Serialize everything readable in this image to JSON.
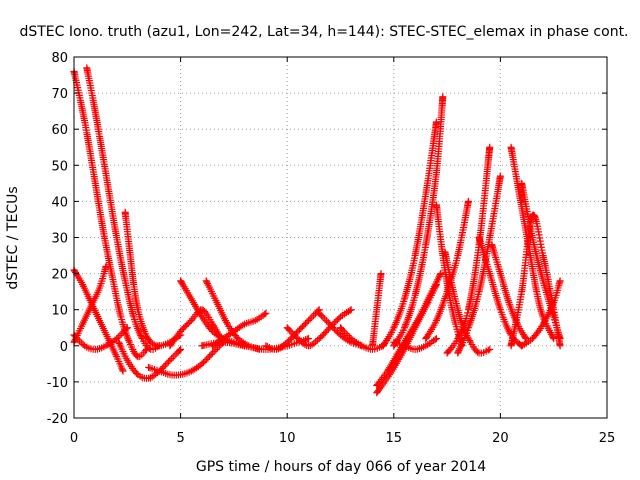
{
  "chart_data": {
    "type": "scatter",
    "title": "dSTEC Iono. truth (azu1, Lon=242, Lat=34, h=144): STEC-STEC_elemax in phase cont.",
    "xlabel": "GPS time / hours of day 066 of year 2014",
    "ylabel": "dSTEC  / TECUs",
    "xlim": [
      0,
      25
    ],
    "ylim": [
      -20,
      80
    ],
    "xticks": [
      "0",
      "5",
      "10",
      "15",
      "20",
      "25"
    ],
    "yticks": [
      "-20",
      "-10",
      "0",
      "10",
      "20",
      "30",
      "40",
      "50",
      "60",
      "70",
      "80"
    ],
    "grid": true,
    "marker": "plus",
    "color": "#ff0000",
    "series": [
      {
        "x": [
          0.0,
          0.3,
          0.6,
          1.0,
          1.4,
          1.8,
          2.2,
          2.6,
          3.0,
          3.4
        ],
        "y": [
          76,
          68,
          59,
          45,
          31,
          19,
          8,
          1,
          -3,
          -1
        ]
      },
      {
        "x": [
          0.6,
          0.9,
          1.2,
          1.6,
          2.0,
          2.4,
          2.8,
          3.2,
          3.6,
          4.0
        ],
        "y": [
          77,
          68,
          58,
          44,
          30,
          18,
          8,
          2,
          -1,
          0
        ]
      },
      {
        "x": [
          0.0,
          0.4,
          0.8,
          1.2,
          1.6,
          2.0,
          2.3
        ],
        "y": [
          21,
          17,
          12,
          7,
          2,
          -3,
          -7
        ]
      },
      {
        "x": [
          0.0,
          0.4,
          0.8,
          1.2,
          1.5
        ],
        "y": [
          1,
          6,
          11,
          16,
          22
        ]
      },
      {
        "x": [
          0.0,
          0.5,
          1.0,
          1.5,
          2.0,
          2.5
        ],
        "y": [
          3,
          0,
          -1,
          0,
          2,
          5
        ]
      },
      {
        "x": [
          2.4,
          2.6,
          2.8,
          3.0,
          3.3,
          3.6,
          4.0,
          4.5,
          5.0
        ],
        "y": [
          37,
          27,
          17,
          10,
          4,
          1,
          0,
          1,
          3
        ]
      },
      {
        "x": [
          2.1,
          2.5,
          3.0,
          3.5,
          4.0,
          4.5,
          5.0
        ],
        "y": [
          1,
          -4,
          -8,
          -9,
          -7,
          -4,
          -1
        ]
      },
      {
        "x": [
          3.5,
          4.0,
          4.5,
          5.0,
          5.5,
          6.0,
          6.5,
          7.0
        ],
        "y": [
          -6,
          -7,
          -8,
          -8,
          -7,
          -5,
          -2,
          1
        ]
      },
      {
        "x": [
          4.5,
          5.0,
          5.5,
          6.0,
          6.5,
          7.0
        ],
        "y": [
          0,
          4,
          7,
          10,
          6,
          1
        ]
      },
      {
        "x": [
          5.0,
          5.5,
          6.0,
          6.5,
          7.0,
          7.5,
          8.0
        ],
        "y": [
          18,
          13,
          8,
          4,
          2,
          1,
          0
        ]
      },
      {
        "x": [
          6.2,
          6.7,
          7.2,
          7.7,
          8.2,
          8.7
        ],
        "y": [
          18,
          12,
          6,
          2,
          0,
          -1
        ]
      },
      {
        "x": [
          6.5,
          7.0,
          7.5,
          8.0,
          8.5,
          9.0
        ],
        "y": [
          0,
          2,
          4,
          6,
          7,
          9
        ]
      },
      {
        "x": [
          6.0,
          7.0,
          8.0,
          9.0,
          10.0,
          11.0
        ],
        "y": [
          0,
          1,
          0,
          -1,
          0,
          2
        ]
      },
      {
        "x": [
          9.0,
          9.5,
          10.0,
          10.5,
          11.0,
          11.5
        ],
        "y": [
          0,
          -1,
          1,
          4,
          7,
          10
        ]
      },
      {
        "x": [
          10.0,
          10.5,
          11.0,
          11.5,
          12.0,
          12.5,
          13.0
        ],
        "y": [
          5,
          2,
          0,
          2,
          5,
          8,
          10
        ]
      },
      {
        "x": [
          11.5,
          12.0,
          12.5,
          13.0,
          13.5
        ],
        "y": [
          9,
          6,
          3,
          1,
          0
        ]
      },
      {
        "x": [
          12.5,
          13.0,
          13.5,
          14.0,
          14.5
        ],
        "y": [
          5,
          2,
          0,
          -1,
          0
        ]
      },
      {
        "x": [
          14.0,
          14.2,
          14.4
        ],
        "y": [
          0,
          10,
          20
        ]
      },
      {
        "x": [
          14.2,
          14.8,
          15.4,
          16.0,
          16.6,
          17.0
        ],
        "y": [
          -13,
          -8,
          -2,
          5,
          12,
          17
        ]
      },
      {
        "x": [
          14.2,
          14.7,
          15.2,
          15.7,
          16.2,
          16.7,
          17.2
        ],
        "y": [
          -11,
          -7,
          -2,
          3,
          8,
          14,
          20
        ]
      },
      {
        "x": [
          14.5,
          15.0,
          15.5,
          16.0,
          16.5,
          17.0
        ],
        "y": [
          0,
          5,
          13,
          25,
          42,
          62
        ]
      },
      {
        "x": [
          15.0,
          15.5,
          16.0,
          16.5,
          17.0,
          17.3
        ],
        "y": [
          0,
          5,
          14,
          28,
          48,
          69
        ]
      },
      {
        "x": [
          15.0,
          15.5,
          16.0,
          16.5,
          17.0
        ],
        "y": [
          1,
          0,
          -1,
          0,
          2
        ]
      },
      {
        "x": [
          16.5,
          17.0,
          17.5,
          18.0,
          18.5
        ],
        "y": [
          2,
          7,
          15,
          25,
          40
        ]
      },
      {
        "x": [
          17.0,
          17.3,
          17.6,
          17.9,
          18.2
        ],
        "y": [
          39,
          25,
          14,
          6,
          0
        ]
      },
      {
        "x": [
          17.4,
          17.8,
          18.2,
          18.6,
          19.0,
          19.5
        ],
        "y": [
          26,
          15,
          6,
          1,
          -2,
          -1
        ]
      },
      {
        "x": [
          17.5,
          18.0,
          18.5,
          19.0,
          19.5
        ],
        "y": [
          -2,
          2,
          10,
          28,
          55
        ]
      },
      {
        "x": [
          18.0,
          18.5,
          19.0,
          19.5,
          20.0
        ],
        "y": [
          -2,
          5,
          15,
          30,
          47
        ]
      },
      {
        "x": [
          19.0,
          19.5,
          20.0,
          20.5,
          21.0
        ],
        "y": [
          30,
          20,
          10,
          3,
          0
        ]
      },
      {
        "x": [
          19.6,
          20.0,
          20.4,
          20.8,
          21.2
        ],
        "y": [
          28,
          20,
          12,
          6,
          2
        ]
      },
      {
        "x": [
          20.5,
          20.8,
          21.1,
          21.4,
          21.7,
          22.0,
          22.5
        ],
        "y": [
          55,
          45,
          35,
          25,
          15,
          8,
          2
        ]
      },
      {
        "x": [
          20.5,
          21.0,
          21.5,
          22.0,
          22.5,
          22.8
        ],
        "y": [
          0,
          15,
          36,
          25,
          10,
          0
        ]
      },
      {
        "x": [
          21.0,
          21.5,
          22.0,
          22.5,
          22.8
        ],
        "y": [
          45,
          30,
          18,
          8,
          2
        ]
      },
      {
        "x": [
          21.0,
          21.5,
          22.0,
          22.5,
          22.8
        ],
        "y": [
          0,
          2,
          6,
          12,
          18
        ]
      }
    ]
  }
}
